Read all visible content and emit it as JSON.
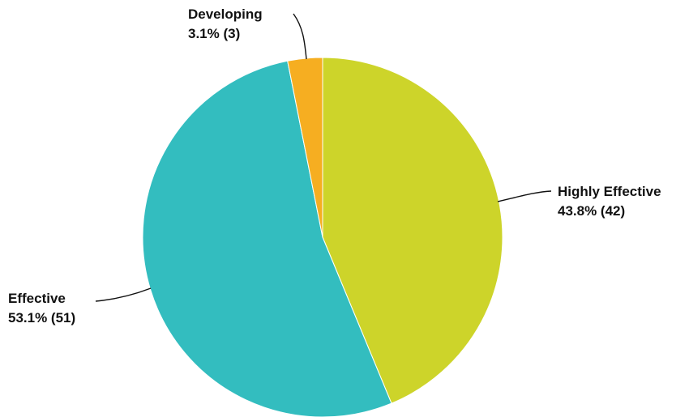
{
  "chart_data": {
    "type": "pie",
    "title": "",
    "start_angle_deg": 0,
    "direction": "clockwise",
    "slices": [
      {
        "label": "Highly Effective",
        "count": 42,
        "percent": "43.8%",
        "color": "#cdd42a",
        "display_value": "43.8% (42)"
      },
      {
        "label": "Effective",
        "count": 51,
        "percent": "53.1%",
        "color": "#33bdbf",
        "display_value": "53.1% (51)"
      },
      {
        "label": "Developing",
        "count": 3,
        "percent": "3.1%",
        "color": "#f6ae21",
        "display_value": "3.1% (3)"
      }
    ]
  }
}
